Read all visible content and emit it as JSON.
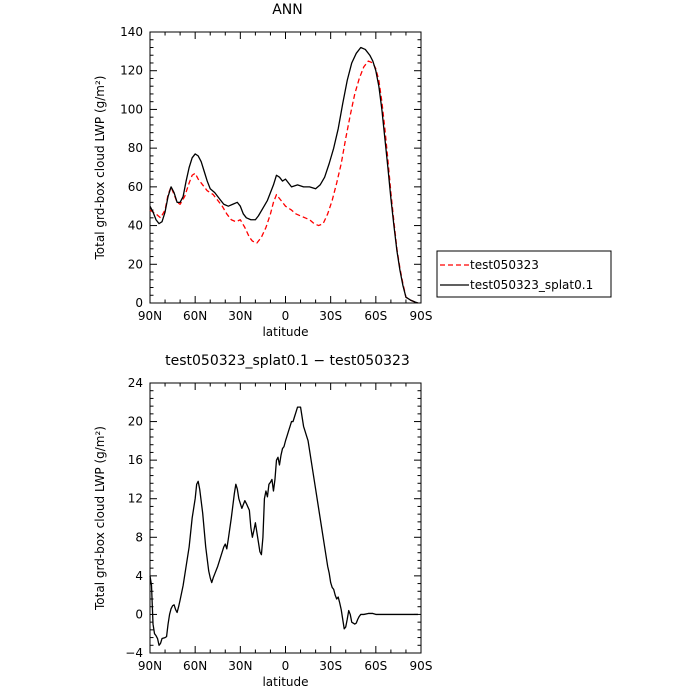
{
  "chart_data": [
    {
      "type": "line",
      "title": "ANN",
      "xlabel": "latitude",
      "ylabel": "Total grd-box cloud LWP (g/m²)",
      "xlim": [
        90,
        -90
      ],
      "ylim": [
        0,
        140
      ],
      "x_ticks": [
        90,
        60,
        30,
        0,
        -30,
        -60,
        -90
      ],
      "x_tick_labels": [
        "90N",
        "60N",
        "30N",
        "0",
        "30S",
        "60S",
        "90S"
      ],
      "y_ticks": [
        0,
        20,
        40,
        60,
        80,
        100,
        120,
        140
      ],
      "y_tick_labels": [
        "0",
        "20",
        "40",
        "60",
        "80",
        "100",
        "120",
        "140"
      ],
      "legend_position": "right",
      "series": [
        {
          "name": "test050323",
          "color": "#ff0000",
          "dash": "dashed",
          "points": [
            [
              90,
              48
            ],
            [
              86,
              46
            ],
            [
              83,
              44
            ],
            [
              80,
              48
            ],
            [
              78,
              56
            ],
            [
              76,
              60
            ],
            [
              74,
              56
            ],
            [
              72,
              52
            ],
            [
              70,
              51
            ],
            [
              67,
              55
            ],
            [
              64,
              62
            ],
            [
              62,
              66
            ],
            [
              60,
              67
            ],
            [
              58,
              64
            ],
            [
              55,
              61
            ],
            [
              52,
              58
            ],
            [
              48,
              56
            ],
            [
              45,
              53
            ],
            [
              42,
              50
            ],
            [
              39,
              46
            ],
            [
              36,
              43
            ],
            [
              33,
              42
            ],
            [
              30,
              43
            ],
            [
              27,
              39
            ],
            [
              24,
              34
            ],
            [
              22,
              32
            ],
            [
              19,
              31
            ],
            [
              16,
              34
            ],
            [
              13,
              39
            ],
            [
              10,
              46
            ],
            [
              8,
              52
            ],
            [
              6,
              56
            ],
            [
              4,
              54
            ],
            [
              2,
              52
            ],
            [
              0,
              50
            ],
            [
              -2,
              49
            ],
            [
              -4,
              48
            ],
            [
              -7,
              46
            ],
            [
              -10,
              45
            ],
            [
              -13,
              44
            ],
            [
              -16,
              43
            ],
            [
              -19,
              41
            ],
            [
              -22,
              40
            ],
            [
              -25,
              41
            ],
            [
              -28,
              46
            ],
            [
              -31,
              53
            ],
            [
              -34,
              62
            ],
            [
              -37,
              72
            ],
            [
              -40,
              85
            ],
            [
              -43,
              97
            ],
            [
              -46,
              108
            ],
            [
              -49,
              116
            ],
            [
              -52,
              122
            ],
            [
              -55,
              125
            ],
            [
              -58,
              124
            ],
            [
              -60,
              121
            ],
            [
              -62,
              115
            ],
            [
              -64,
              104
            ],
            [
              -66,
              90
            ],
            [
              -68,
              74
            ],
            [
              -70,
              57
            ],
            [
              -72,
              42
            ],
            [
              -74,
              28
            ],
            [
              -76,
              18
            ],
            [
              -78,
              10
            ],
            [
              -80,
              3
            ],
            [
              -83,
              1.5
            ],
            [
              -86,
              0.5
            ],
            [
              -88,
              0
            ]
          ]
        },
        {
          "name": "test050323_splat0.1",
          "color": "#000000",
          "dash": "solid",
          "points": [
            [
              90,
              50
            ],
            [
              88,
              47
            ],
            [
              86,
              43
            ],
            [
              84,
              41
            ],
            [
              82,
              42
            ],
            [
              80,
              47
            ],
            [
              78,
              55
            ],
            [
              76,
              60
            ],
            [
              74,
              57
            ],
            [
              72,
              52
            ],
            [
              70,
              52
            ],
            [
              68,
              55
            ],
            [
              66,
              63
            ],
            [
              64,
              70
            ],
            [
              62,
              75
            ],
            [
              60,
              77
            ],
            [
              58,
              76
            ],
            [
              56,
              73
            ],
            [
              54,
              68
            ],
            [
              52,
              63
            ],
            [
              50,
              59
            ],
            [
              47,
              57
            ],
            [
              44,
              54
            ],
            [
              41,
              51
            ],
            [
              38,
              50
            ],
            [
              35,
              51
            ],
            [
              32,
              52
            ],
            [
              30,
              50
            ],
            [
              28,
              46
            ],
            [
              26,
              44
            ],
            [
              23,
              43
            ],
            [
              20,
              43
            ],
            [
              18,
              45
            ],
            [
              15,
              49
            ],
            [
              12,
              53
            ],
            [
              10,
              57
            ],
            [
              8,
              61
            ],
            [
              6,
              66
            ],
            [
              4,
              65
            ],
            [
              2,
              63
            ],
            [
              0,
              64
            ],
            [
              -2,
              62
            ],
            [
              -4,
              60
            ],
            [
              -8,
              61
            ],
            [
              -12,
              60
            ],
            [
              -16,
              60
            ],
            [
              -20,
              59
            ],
            [
              -23,
              61
            ],
            [
              -26,
              65
            ],
            [
              -29,
              72
            ],
            [
              -32,
              80
            ],
            [
              -35,
              90
            ],
            [
              -38,
              103
            ],
            [
              -41,
              115
            ],
            [
              -44,
              124
            ],
            [
              -47,
              129
            ],
            [
              -50,
              132
            ],
            [
              -53,
              131
            ],
            [
              -56,
              128
            ],
            [
              -58,
              125
            ],
            [
              -60,
              120
            ],
            [
              -62,
              112
            ],
            [
              -64,
              100
            ],
            [
              -66,
              85
            ],
            [
              -68,
              70
            ],
            [
              -70,
              54
            ],
            [
              -72,
              40
            ],
            [
              -74,
              27
            ],
            [
              -76,
              17
            ],
            [
              -78,
              9
            ],
            [
              -80,
              3
            ],
            [
              -83,
              1.5
            ],
            [
              -86,
              0.5
            ],
            [
              -88,
              0
            ]
          ]
        }
      ]
    },
    {
      "type": "line",
      "title": "test050323_splat0.1 − test050323",
      "xlabel": "latitude",
      "ylabel": "Total grd-box cloud LWP (g/m²)",
      "xlim": [
        90,
        -90
      ],
      "ylim": [
        -4,
        24
      ],
      "x_ticks": [
        90,
        60,
        30,
        0,
        -30,
        -60,
        -90
      ],
      "x_tick_labels": [
        "90N",
        "60N",
        "30N",
        "0",
        "30S",
        "60S",
        "90S"
      ],
      "y_ticks": [
        -4,
        0,
        4,
        8,
        12,
        16,
        20,
        24
      ],
      "y_tick_labels": [
        "−4",
        "0",
        "4",
        "8",
        "12",
        "16",
        "20",
        "24"
      ],
      "series": [
        {
          "color": "#000000",
          "dash": "solid",
          "points": [
            [
              90,
              4
            ],
            [
              89,
              3
            ],
            [
              88,
              -1
            ],
            [
              87,
              -2
            ],
            [
              86,
              -2.2
            ],
            [
              85,
              -2.5
            ],
            [
              84,
              -3.2
            ],
            [
              83,
              -3
            ],
            [
              82,
              -2.5
            ],
            [
              80,
              -2.4
            ],
            [
              79,
              -2.3
            ],
            [
              78,
              -1
            ],
            [
              77,
              0
            ],
            [
              76,
              0.6
            ],
            [
              75,
              0.9
            ],
            [
              74,
              1
            ],
            [
              73,
              0.5
            ],
            [
              72,
              0.2
            ],
            [
              71,
              0.8
            ],
            [
              70,
              1.5
            ],
            [
              68,
              3
            ],
            [
              66,
              5
            ],
            [
              64,
              7
            ],
            [
              62,
              10
            ],
            [
              60,
              12
            ],
            [
              59,
              13.5
            ],
            [
              58,
              13.8
            ],
            [
              57,
              13
            ],
            [
              55,
              10.5
            ],
            [
              53,
              7
            ],
            [
              51,
              4.5
            ],
            [
              50,
              3.8
            ],
            [
              49,
              3.3
            ],
            [
              48,
              3.8
            ],
            [
              47,
              4.2
            ],
            [
              45,
              5
            ],
            [
              43,
              6
            ],
            [
              41,
              7
            ],
            [
              40,
              7.3
            ],
            [
              39,
              6.8
            ],
            [
              38,
              7.8
            ],
            [
              36,
              10
            ],
            [
              34,
              12.5
            ],
            [
              33,
              13.5
            ],
            [
              32,
              13
            ],
            [
              31,
              12
            ],
            [
              30,
              11.5
            ],
            [
              29,
              11
            ],
            [
              27,
              11.8
            ],
            [
              26,
              11.5
            ],
            [
              24,
              10.8
            ],
            [
              23,
              9
            ],
            [
              22,
              8
            ],
            [
              21,
              8.7
            ],
            [
              20,
              9.5
            ],
            [
              19,
              8.5
            ],
            [
              18,
              7.5
            ],
            [
              17,
              6.5
            ],
            [
              16,
              6.2
            ],
            [
              15,
              8
            ],
            [
              14,
              12
            ],
            [
              13,
              12.8
            ],
            [
              12,
              12.2
            ],
            [
              11,
              13.5
            ],
            [
              10,
              13.7
            ],
            [
              9,
              14
            ],
            [
              8,
              12.8
            ],
            [
              7,
              14
            ],
            [
              6,
              16
            ],
            [
              5,
              16.3
            ],
            [
              4,
              15.5
            ],
            [
              3,
              16.5
            ],
            [
              2,
              17.2
            ],
            [
              1,
              17.4
            ],
            [
              0,
              18
            ],
            [
              -1,
              18.5
            ],
            [
              -2,
              19
            ],
            [
              -3,
              19.5
            ],
            [
              -4,
              20
            ],
            [
              -5,
              20
            ],
            [
              -6,
              20.5
            ],
            [
              -7,
              21
            ],
            [
              -8,
              21.5
            ],
            [
              -9,
              21.5
            ],
            [
              -10,
              21.5
            ],
            [
              -11,
              20.5
            ],
            [
              -12,
              19.5
            ],
            [
              -13,
              19
            ],
            [
              -14,
              18.5
            ],
            [
              -15,
              18
            ],
            [
              -16,
              17
            ],
            [
              -18,
              15
            ],
            [
              -20,
              13
            ],
            [
              -22,
              11
            ],
            [
              -24,
              9
            ],
            [
              -26,
              7
            ],
            [
              -28,
              5
            ],
            [
              -29,
              4.3
            ],
            [
              -30,
              3.3
            ],
            [
              -31,
              2.8
            ],
            [
              -32,
              2.6
            ],
            [
              -33,
              2
            ],
            [
              -34,
              1.6
            ],
            [
              -35,
              1.8
            ],
            [
              -36,
              1.2
            ],
            [
              -37,
              0.5
            ],
            [
              -38,
              -0.5
            ],
            [
              -39,
              -1.5
            ],
            [
              -40,
              -1.3
            ],
            [
              -41,
              -0.5
            ],
            [
              -42,
              0.4
            ],
            [
              -43,
              0
            ],
            [
              -44,
              -0.8
            ],
            [
              -46,
              -1
            ],
            [
              -47,
              -0.9
            ],
            [
              -48,
              -0.5
            ],
            [
              -49,
              -0.2
            ],
            [
              -50,
              0
            ],
            [
              -52,
              0
            ],
            [
              -55,
              0.1
            ],
            [
              -58,
              0.1
            ],
            [
              -60,
              0
            ],
            [
              -65,
              0
            ],
            [
              -70,
              0
            ],
            [
              -75,
              0
            ],
            [
              -80,
              0
            ],
            [
              -85,
              0
            ],
            [
              -88,
              0
            ]
          ]
        }
      ]
    }
  ]
}
